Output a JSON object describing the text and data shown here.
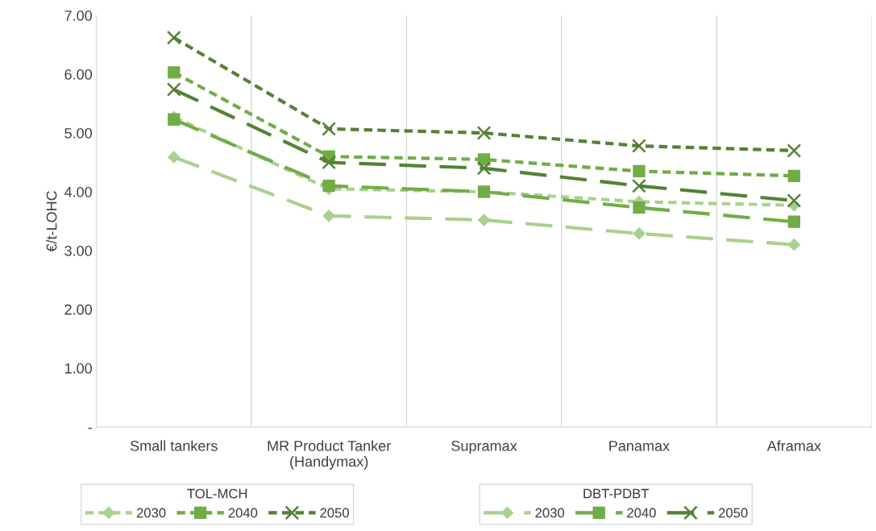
{
  "chart_data": {
    "type": "line",
    "ylabel": "€/t-LOHC",
    "categories": [
      "Small tankers",
      "MR Product Tanker\n(Handymax)",
      "Supramax",
      "Panamax",
      "Aframax"
    ],
    "ylim": [
      0,
      7
    ],
    "yticks": [
      {
        "value": 0,
        "label": "-"
      },
      {
        "value": 1,
        "label": "1.00"
      },
      {
        "value": 2,
        "label": "2.00"
      },
      {
        "value": 3,
        "label": "3.00"
      },
      {
        "value": 4,
        "label": "4.00"
      },
      {
        "value": 5,
        "label": "5.00"
      },
      {
        "value": 6,
        "label": "6.00"
      },
      {
        "value": 7,
        "label": "7.00"
      }
    ],
    "grid": "x",
    "legend": "bottom",
    "legend_title": [
      "TOL-MCH",
      "DBT-PDBT"
    ],
    "series": [
      {
        "name": "2030",
        "color": "#a9d18e",
        "marker": "diamond",
        "line_style": "dotted",
        "values": [
          5.27,
          4.05,
          4.0,
          3.83,
          3.77
        ]
      },
      {
        "name": "2040",
        "color": "#70ad47",
        "marker": "square",
        "line_style": "dotted",
        "values": [
          6.03,
          4.6,
          4.55,
          4.35,
          4.27
        ]
      },
      {
        "name": "2050",
        "color": "#548235",
        "marker": "cross",
        "line_style": "dotted",
        "values": [
          6.62,
          5.07,
          5.0,
          4.78,
          4.7
        ]
      },
      {
        "name": "2030",
        "color": "#a9d18e",
        "marker": "diamond",
        "line_style": "dashed",
        "values": [
          4.59,
          3.59,
          3.52,
          3.29,
          3.1
        ]
      },
      {
        "name": "2040",
        "color": "#70ad47",
        "marker": "square",
        "line_style": "dashed",
        "values": [
          5.23,
          4.1,
          4.0,
          3.73,
          3.49
        ]
      },
      {
        "name": "2050",
        "color": "#548235",
        "marker": "cross",
        "line_style": "dashed",
        "values": [
          5.74,
          4.5,
          4.4,
          4.1,
          3.85
        ]
      }
    ]
  }
}
